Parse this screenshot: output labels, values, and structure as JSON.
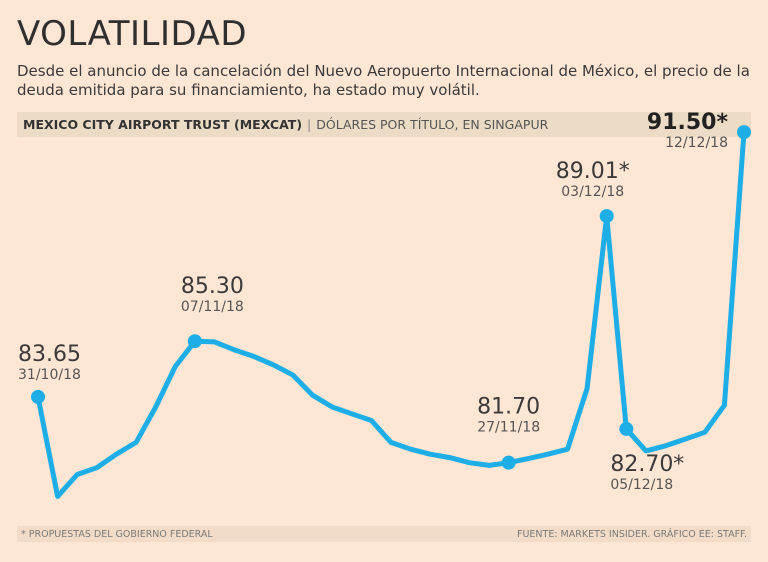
{
  "header": {
    "title": "VOLATILIDAD",
    "subtitle": "Desde el anuncio de la cancelación del Nuevo Aeropuerto Internacional de México, el precio de la deuda emitida para su financiamiento, ha estado muy volátil."
  },
  "band": {
    "series_name": "MEXICO CITY AIRPORT TRUST (MEXCAT)",
    "separator": "|",
    "unit": "DÓLARES POR TÍTULO, EN SINGAPUR"
  },
  "footer": {
    "note": "* PROPUESTAS DEL GOBIERNO FEDERAL",
    "source": "FUENTE: MARKETS INSIDER. GRÁFICO EE: STAFF."
  },
  "colors": {
    "line": "#1daee8",
    "background": "#fde6d3",
    "band": "#ecdcc6"
  },
  "chart_data": {
    "type": "line",
    "title": "VOLATILIDAD",
    "ylabel": "Dólares por título, en Singapur",
    "ylim": [
      80.0,
      91.8
    ],
    "x": [
      0,
      1,
      2,
      3,
      4,
      5,
      6,
      7,
      8,
      9,
      10,
      11,
      12,
      13,
      14,
      15,
      16,
      17,
      18,
      19,
      20,
      21,
      22,
      23,
      24,
      25,
      26,
      27,
      28,
      29,
      30,
      31,
      32,
      33,
      34,
      35,
      36
    ],
    "values": [
      83.65,
      80.7,
      81.35,
      81.55,
      81.95,
      82.3,
      83.35,
      84.55,
      85.3,
      85.28,
      85.05,
      84.85,
      84.6,
      84.3,
      83.7,
      83.35,
      83.15,
      82.95,
      82.3,
      82.1,
      81.95,
      81.85,
      81.7,
      81.62,
      81.7,
      81.82,
      81.95,
      82.1,
      83.9,
      89.01,
      82.7,
      82.05,
      82.2,
      82.4,
      82.6,
      83.4,
      91.5
    ],
    "annotations": [
      {
        "index": 0,
        "value": "83.65",
        "date": "31/10/18",
        "bold": false
      },
      {
        "index": 8,
        "value": "85.30",
        "date": "07/11/18",
        "bold": false
      },
      {
        "index": 24,
        "value": "81.70",
        "date": "27/11/18",
        "bold": false
      },
      {
        "index": 29,
        "value": "89.01*",
        "date": "03/12/18",
        "bold": false
      },
      {
        "index": 30,
        "value": "82.70*",
        "date": "05/12/18",
        "bold": false
      },
      {
        "index": 36,
        "value": "91.50*",
        "date": "12/12/18",
        "bold": true
      }
    ]
  }
}
